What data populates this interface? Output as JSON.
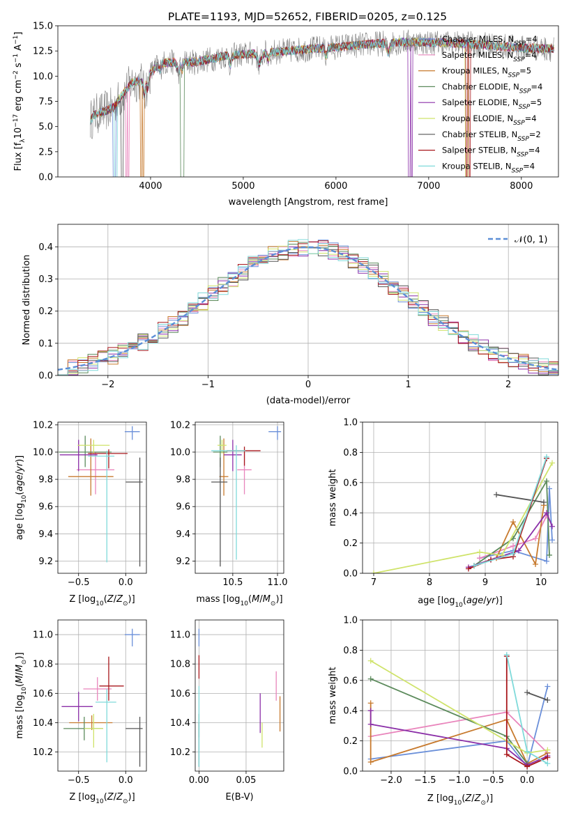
{
  "figure": {
    "title": "PLATE=1193, MJD=52652, FIBERID=0205, z=0.125"
  },
  "chart_data": [
    {
      "id": "spectrum",
      "type": "line",
      "xlabel": "wavelength [Angstrom, rest frame]",
      "ylabel": "Flux [f_λ 10^-17 erg cm^-2 s^-1 A^-1]",
      "xlim": [
        3000,
        8400
      ],
      "ylim": [
        0,
        15
      ],
      "xticks": [
        4000,
        5000,
        6000,
        7000,
        8000
      ],
      "yticks": [
        0.0,
        2.5,
        5.0,
        7.5,
        10.0,
        12.5,
        15.0
      ],
      "grid": false,
      "legend_position": "right",
      "data_range": [
        3350,
        8350
      ],
      "data_trend": {
        "lambda": [
          3350,
          3400,
          3500,
          3600,
          3700,
          3800,
          3900,
          4000,
          4100,
          4300,
          4500,
          4800,
          5200,
          5600,
          6000,
          6400,
          6800,
          7200,
          7600,
          8000,
          8350
        ],
        "flux": [
          5.6,
          6.2,
          6.5,
          6.9,
          8.2,
          9.4,
          9.5,
          10.3,
          11.3,
          11.4,
          11.4,
          12.0,
          12.3,
          12.6,
          12.9,
          13.2,
          13.4,
          13.3,
          13.1,
          12.8,
          12.7
        ]
      },
      "series": [
        {
          "name": "Chabrier MILES, N_SSP=4",
          "color": "#6a8fd9",
          "width": 0.9
        },
        {
          "name": "Salpeter MILES, N_SSP=4",
          "color": "#e985bc",
          "width": 0.9
        },
        {
          "name": "Kroupa MILES, N_SSP=5",
          "color": "#c77a2e",
          "width": 0.9
        },
        {
          "name": "Chabrier ELODIE, N_SSP=4",
          "color": "#5b8a5b",
          "width": 0.9
        },
        {
          "name": "Salpeter ELODIE, N_SSP=5",
          "color": "#8b2fa8",
          "width": 0.9
        },
        {
          "name": "Kroupa ELODIE, N_SSP=4",
          "color": "#cfe36a",
          "width": 0.9
        },
        {
          "name": "Chabrier STELIB, N_SSP=2",
          "color": "#555555",
          "width": 0.9
        },
        {
          "name": "Salpeter STELIB, N_SSP=4",
          "color": "#a8161b",
          "width": 0.9
        },
        {
          "name": "Kroupa STELIB, N_SSP=4",
          "color": "#7fdada",
          "width": 0.9
        }
      ],
      "data_color": "#808080"
    },
    {
      "id": "residuals",
      "type": "histogram",
      "xlabel": "(data-model)/error",
      "ylabel": "Normed distribution",
      "xlim": [
        -2.5,
        2.5
      ],
      "ylim": [
        0,
        0.47
      ],
      "xticks": [
        -2,
        -1,
        0,
        1,
        2
      ],
      "yticks": [
        0.0,
        0.1,
        0.2,
        0.3,
        0.4
      ],
      "grid": true,
      "legend_position": "top-right",
      "reference_curve": {
        "name": "𝒩(0, 1)",
        "color": "#5b8ed6",
        "mean": 0,
        "sigma": 1
      },
      "bin_edges_start": -2.5,
      "bin_width": 0.1,
      "series_colors": [
        "#6a8fd9",
        "#e985bc",
        "#c77a2e",
        "#5b8a5b",
        "#8b2fa8",
        "#cfe36a",
        "#555555",
        "#a8161b",
        "#7fdada"
      ]
    },
    {
      "id": "age_vs_Z",
      "type": "errorbar",
      "xlabel": "Z [log10(Z/Z⊙)]",
      "ylabel": "age  [log10(age/yr)]",
      "xlim": [
        -0.72,
        0.22
      ],
      "ylim": [
        9.11,
        10.22
      ],
      "xticks": [
        -0.5,
        0.0
      ],
      "yticks": [
        9.2,
        9.4,
        9.6,
        9.8,
        10.0,
        10.2
      ],
      "grid": true,
      "points": [
        {
          "color": "#6a8fd9",
          "x": 0.07,
          "y": 10.15,
          "xerr": [
            0.08,
            0.08
          ],
          "yerr": [
            0.06,
            0.04
          ]
        },
        {
          "color": "#e985bc",
          "x": -0.32,
          "y": 9.87,
          "xerr": [
            0.2,
            0.2
          ],
          "yerr": [
            0.18,
            0.13
          ]
        },
        {
          "color": "#c77a2e",
          "x": -0.37,
          "y": 9.82,
          "xerr": [
            0.24,
            0.24
          ],
          "yerr": [
            0.14,
            0.28
          ]
        },
        {
          "color": "#5b8a5b",
          "x": -0.43,
          "y": 10.0,
          "xerr": [
            0.28,
            0.28
          ],
          "yerr": [
            0.11,
            0.12
          ]
        },
        {
          "color": "#8b2fa8",
          "x": -0.5,
          "y": 9.98,
          "xerr": [
            0.2,
            0.2
          ],
          "yerr": [
            0.12,
            0.11
          ]
        },
        {
          "color": "#cfe36a",
          "x": -0.34,
          "y": 10.05,
          "xerr": [
            0.17,
            0.17
          ],
          "yerr": [
            0.06,
            0.04
          ]
        },
        {
          "color": "#555555",
          "x": 0.15,
          "y": 9.78,
          "xerr": [
            0.15,
            0.03
          ],
          "yerr": [
            0.62,
            0.18
          ]
        },
        {
          "color": "#a8161b",
          "x": -0.18,
          "y": 9.99,
          "xerr": [
            0.22,
            0.2
          ],
          "yerr": [
            0.11,
            0.03
          ]
        },
        {
          "color": "#7fdada",
          "x": -0.2,
          "y": 9.97,
          "xerr": [
            0.2,
            0.08
          ],
          "yerr": [
            0.78,
            0.04
          ]
        }
      ]
    },
    {
      "id": "age_vs_mass",
      "type": "errorbar",
      "xlabel": "mass [log10(M/M⊙)]",
      "ylabel": "",
      "xlim": [
        10.08,
        11.07
      ],
      "ylim": [
        9.11,
        10.22
      ],
      "xticks": [
        10.5,
        11.0
      ],
      "yticks": [
        9.2,
        9.4,
        9.6,
        9.8,
        10.0,
        10.2
      ],
      "grid": true,
      "points": [
        {
          "color": "#6a8fd9",
          "x": 11.0,
          "y": 10.15,
          "xerr": [
            0.1,
            0.04
          ],
          "yerr": [
            0.06,
            0.04
          ]
        },
        {
          "color": "#e985bc",
          "x": 10.63,
          "y": 9.87,
          "xerr": [
            0.08,
            0.08
          ],
          "yerr": [
            0.18,
            0.13
          ]
        },
        {
          "color": "#c77a2e",
          "x": 10.4,
          "y": 9.82,
          "xerr": [
            0.05,
            0.05
          ],
          "yerr": [
            0.14,
            0.28
          ]
        },
        {
          "color": "#5b8a5b",
          "x": 10.36,
          "y": 10.0,
          "xerr": [
            0.08,
            0.08
          ],
          "yerr": [
            0.11,
            0.12
          ]
        },
        {
          "color": "#8b2fa8",
          "x": 10.5,
          "y": 9.98,
          "xerr": [
            0.1,
            0.1
          ],
          "yerr": [
            0.12,
            0.11
          ]
        },
        {
          "color": "#cfe36a",
          "x": 10.38,
          "y": 10.05,
          "xerr": [
            0.05,
            0.05
          ],
          "yerr": [
            0.06,
            0.04
          ]
        },
        {
          "color": "#555555",
          "x": 10.36,
          "y": 9.78,
          "xerr": [
            0.1,
            0.08
          ],
          "yerr": [
            0.62,
            0.18
          ]
        },
        {
          "color": "#a8161b",
          "x": 10.63,
          "y": 10.01,
          "xerr": [
            0.2,
            0.18
          ],
          "yerr": [
            0.11,
            0.03
          ]
        },
        {
          "color": "#7fdada",
          "x": 10.54,
          "y": 10.01,
          "xerr": [
            0.28,
            0.1
          ],
          "yerr": [
            0.8,
            0.04
          ]
        }
      ]
    },
    {
      "id": "weight_vs_age",
      "type": "line",
      "xlabel": "age  [log10(age/yr)]",
      "ylabel": "mass weight",
      "xlim": [
        6.8,
        10.3
      ],
      "ylim": [
        0,
        1.0
      ],
      "xticks": [
        7,
        8,
        9,
        10
      ],
      "yticks": [
        0.0,
        0.2,
        0.4,
        0.6,
        0.8,
        1.0
      ],
      "grid": true,
      "series": [
        {
          "name": "Chabrier MILES",
          "color": "#6a8fd9",
          "x": [
            8.9,
            9.5,
            10.1,
            10.15,
            10.2
          ],
          "y": [
            0.1,
            0.15,
            0.08,
            0.56,
            0.22
          ]
        },
        {
          "name": "Salpeter MILES",
          "color": "#e985bc",
          "x": [
            8.9,
            9.5,
            9.9,
            10.1
          ],
          "y": [
            0.1,
            0.18,
            0.23,
            0.38
          ]
        },
        {
          "name": "Kroupa MILES",
          "color": "#c77a2e",
          "x": [
            8.8,
            9.2,
            9.5,
            9.9,
            10.05
          ],
          "y": [
            0.05,
            0.1,
            0.34,
            0.06,
            0.45
          ]
        },
        {
          "name": "Chabrier ELODIE",
          "color": "#5b8a5b",
          "x": [
            8.8,
            9.5,
            10.1,
            10.15
          ],
          "y": [
            0.05,
            0.23,
            0.61,
            0.12
          ]
        },
        {
          "name": "Salpeter ELODIE",
          "color": "#8b2fa8",
          "x": [
            8.7,
            9.1,
            9.6,
            10.1,
            10.2
          ],
          "y": [
            0.04,
            0.09,
            0.15,
            0.4,
            0.31
          ]
        },
        {
          "name": "Kroupa ELODIE",
          "color": "#cfe36a",
          "x": [
            7.0,
            8.9,
            9.3,
            10.2
          ],
          "y": [
            0.0,
            0.14,
            0.12,
            0.73
          ]
        },
        {
          "name": "Chabrier STELIB",
          "color": "#555555",
          "x": [
            9.2,
            10.05
          ],
          "y": [
            0.52,
            0.47
          ]
        },
        {
          "name": "Salpeter STELIB",
          "color": "#a8161b",
          "x": [
            8.7,
            9.1,
            9.5,
            10.1
          ],
          "y": [
            0.03,
            0.09,
            0.11,
            0.76
          ]
        },
        {
          "name": "Kroupa STELIB",
          "color": "#7fdada",
          "x": [
            8.8,
            9.5,
            10.1
          ],
          "y": [
            0.05,
            0.13,
            0.77
          ]
        }
      ]
    },
    {
      "id": "mass_vs_Z",
      "type": "errorbar",
      "xlabel": "Z [log10(Z/Z⊙)]",
      "ylabel": "mass [log10(M/M⊙)]",
      "xlim": [
        -0.72,
        0.22
      ],
      "ylim": [
        10.07,
        11.1
      ],
      "xticks": [
        -0.5,
        0.0
      ],
      "yticks": [
        10.2,
        10.4,
        10.6,
        10.8,
        11.0
      ],
      "grid": true,
      "points": [
        {
          "color": "#6a8fd9",
          "x": 0.07,
          "y": 11.0,
          "xerr": [
            0.08,
            0.08
          ],
          "yerr": [
            0.08,
            0.04
          ]
        },
        {
          "color": "#e985bc",
          "x": -0.3,
          "y": 10.63,
          "xerr": [
            0.15,
            0.15
          ],
          "yerr": [
            0.08,
            0.08
          ]
        },
        {
          "color": "#c77a2e",
          "x": -0.36,
          "y": 10.4,
          "xerr": [
            0.24,
            0.22
          ],
          "yerr": [
            0.05,
            0.05
          ]
        },
        {
          "color": "#5b8a5b",
          "x": -0.44,
          "y": 10.36,
          "xerr": [
            0.22,
            0.2
          ],
          "yerr": [
            0.08,
            0.08
          ]
        },
        {
          "color": "#8b2fa8",
          "x": -0.5,
          "y": 10.51,
          "xerr": [
            0.18,
            0.15
          ],
          "yerr": [
            0.1,
            0.1
          ]
        },
        {
          "color": "#cfe36a",
          "x": -0.34,
          "y": 10.36,
          "xerr": [
            0.1,
            0.1
          ],
          "yerr": [
            0.13,
            0.1
          ]
        },
        {
          "color": "#555555",
          "x": 0.15,
          "y": 10.36,
          "xerr": [
            0.15,
            0.03
          ],
          "yerr": [
            0.26,
            0.08
          ]
        },
        {
          "color": "#a8161b",
          "x": -0.18,
          "y": 10.65,
          "xerr": [
            0.1,
            0.16
          ],
          "yerr": [
            0.1,
            0.2
          ]
        },
        {
          "color": "#7fdada",
          "x": -0.2,
          "y": 10.54,
          "xerr": [
            0.12,
            0.1
          ],
          "yerr": [
            0.41,
            0.09
          ]
        }
      ]
    },
    {
      "id": "mass_vs_EBV",
      "type": "errorbar",
      "xlabel": "E(B-V)",
      "ylabel": "",
      "xlim": [
        -0.004,
        0.09
      ],
      "ylim": [
        10.07,
        11.1
      ],
      "xticks": [
        0.0,
        0.05
      ],
      "yticks": [
        10.2,
        10.4,
        10.6,
        10.8,
        11.0
      ],
      "grid": true,
      "points": [
        {
          "color": "#6a8fd9",
          "x": 0.0,
          "y": 11.0,
          "xerr": [
            0,
            0
          ],
          "yerr": [
            0.08,
            0.04
          ]
        },
        {
          "color": "#e985bc",
          "x": 0.082,
          "y": 10.63,
          "xerr": [
            0,
            0
          ],
          "yerr": [
            0.08,
            0.12
          ]
        },
        {
          "color": "#c77a2e",
          "x": 0.086,
          "y": 10.46,
          "xerr": [
            0,
            0
          ],
          "yerr": [
            0.12,
            0.12
          ]
        },
        {
          "color": "#5b8a5b",
          "x": 0.0,
          "y": 10.38,
          "xerr": [
            0,
            0
          ],
          "yerr": [
            0.08,
            0.08
          ]
        },
        {
          "color": "#8b2fa8",
          "x": 0.065,
          "y": 10.45,
          "xerr": [
            0,
            0
          ],
          "yerr": [
            0.12,
            0.15
          ]
        },
        {
          "color": "#cfe36a",
          "x": 0.067,
          "y": 10.33,
          "xerr": [
            0,
            0
          ],
          "yerr": [
            0.1,
            0.07
          ]
        },
        {
          "color": "#555555",
          "x": 0.0,
          "y": 10.3,
          "xerr": [
            0,
            0
          ],
          "yerr": [
            0.2,
            0.1
          ]
        },
        {
          "color": "#a8161b",
          "x": 0.0,
          "y": 10.78,
          "xerr": [
            0,
            0
          ],
          "yerr": [
            0.08,
            0.08
          ]
        },
        {
          "color": "#7fdada",
          "x": 0.0,
          "y": 10.55,
          "xerr": [
            0,
            0
          ],
          "yerr": [
            0.45,
            0.1
          ]
        }
      ]
    },
    {
      "id": "weight_vs_Z",
      "type": "line",
      "xlabel": "Z [log10(Z/Z⊙)]",
      "ylabel": "mass weight",
      "xlim": [
        -2.42,
        0.45
      ],
      "ylim": [
        0,
        1.0
      ],
      "xticks": [
        -2.0,
        -1.5,
        -1.0,
        -0.5,
        0.0
      ],
      "yticks": [
        0.0,
        0.2,
        0.4,
        0.6,
        0.8,
        1.0
      ],
      "grid": true,
      "series": [
        {
          "name": "Chabrier MILES",
          "color": "#6a8fd9",
          "x": [
            -2.3,
            -0.3,
            0.0,
            0.3
          ],
          "y": [
            0.08,
            0.2,
            0.03,
            0.56
          ]
        },
        {
          "name": "Salpeter MILES",
          "color": "#e985bc",
          "x": [
            -2.3,
            -0.3,
            0.3
          ],
          "y": [
            0.23,
            0.39,
            0.12
          ]
        },
        {
          "name": "Kroupa MILES",
          "color": "#c77a2e",
          "x": [
            -2.3,
            -2.3,
            -0.3,
            0.0,
            0.3
          ],
          "y": [
            0.45,
            0.06,
            0.34,
            0.05,
            0.12
          ]
        },
        {
          "name": "Chabrier ELODIE",
          "color": "#5b8a5b",
          "x": [
            -2.3,
            -0.3,
            0.0
          ],
          "y": [
            0.61,
            0.23,
            0.05
          ]
        },
        {
          "name": "Salpeter ELODIE",
          "color": "#8b2fa8",
          "x": [
            -2.3,
            -2.3,
            -0.3,
            0.0,
            0.3
          ],
          "y": [
            0.4,
            0.31,
            0.15,
            0.04,
            0.1
          ]
        },
        {
          "name": "Kroupa ELODIE",
          "color": "#cfe36a",
          "x": [
            -2.3,
            0.0,
            0.3
          ],
          "y": [
            0.73,
            0.12,
            0.14
          ]
        },
        {
          "name": "Chabrier STELIB",
          "color": "#555555",
          "x": [
            0.0,
            0.3
          ],
          "y": [
            0.52,
            0.47
          ]
        },
        {
          "name": "Salpeter STELIB",
          "color": "#a8161b",
          "x": [
            -0.3,
            -0.3,
            0.0,
            0.3
          ],
          "y": [
            0.76,
            0.11,
            0.03,
            0.09
          ]
        },
        {
          "name": "Kroupa STELIB",
          "color": "#7fdada",
          "x": [
            -0.3,
            0.0,
            0.3
          ],
          "y": [
            0.77,
            0.13,
            0.05
          ]
        }
      ]
    }
  ]
}
